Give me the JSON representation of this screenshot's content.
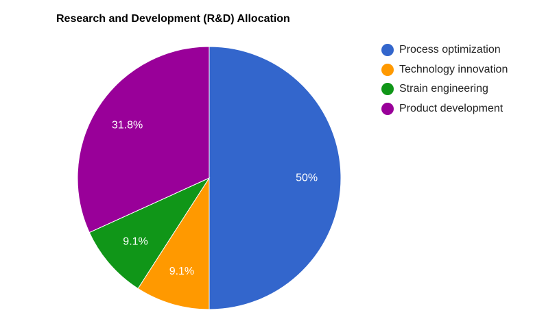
{
  "chart_data": {
    "type": "pie",
    "title": "Research and Development (R&D) Allocation",
    "legend_position": "right",
    "slices": [
      {
        "label": "Process optimization",
        "value": 50,
        "display": "50%",
        "color": "#3366cc"
      },
      {
        "label": "Technology innovation",
        "value": 9.1,
        "display": "9.1%",
        "color": "#ff9900"
      },
      {
        "label": "Strain engineering",
        "value": 9.1,
        "display": "9.1%",
        "color": "#109618"
      },
      {
        "label": "Product development",
        "value": 31.8,
        "display": "31.8%",
        "color": "#990099"
      }
    ]
  }
}
